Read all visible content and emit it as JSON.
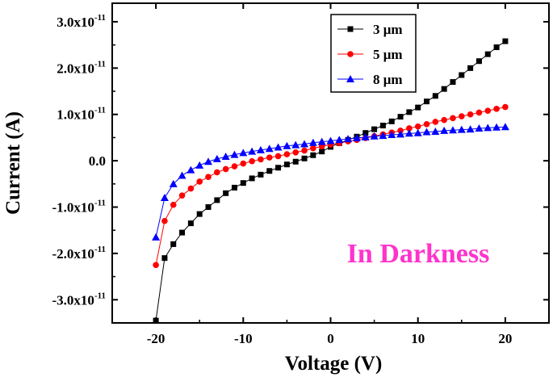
{
  "chart_data": {
    "type": "line",
    "xlabel": "Voltage (V)",
    "ylabel": "Current (A)",
    "xlim": [
      -25,
      25
    ],
    "ylim": [
      -3.5e-11,
      3.4e-11
    ],
    "x_ticks": [
      -20,
      -10,
      0,
      10,
      20
    ],
    "x_tick_labels": [
      "-20",
      "-10",
      "0",
      "10",
      "20"
    ],
    "y_ticks": [
      -3e-11,
      -2e-11,
      -1e-11,
      0,
      1e-11,
      2e-11,
      3e-11
    ],
    "y_tick_labels": [
      {
        "mantissa": "-3.0x10",
        "exp": "-11"
      },
      {
        "mantissa": "-2.0x10",
        "exp": "-11"
      },
      {
        "mantissa": "-1.0x10",
        "exp": "-11"
      },
      {
        "mantissa": "0.0",
        "exp": ""
      },
      {
        "mantissa": "1.0x10",
        "exp": "-11"
      },
      {
        "mantissa": "2.0x10",
        "exp": "-11"
      },
      {
        "mantissa": "3.0x10",
        "exp": "-11"
      }
    ],
    "annotation": "In Darkness",
    "annotation_color": "#ff33cc",
    "legend_position": "top-right",
    "series": [
      {
        "name": "3 μm",
        "marker": "square",
        "color": "#000000",
        "x": [
          -20,
          -19,
          -18,
          -17,
          -16,
          -15,
          -14,
          -13,
          -12,
          -11,
          -10,
          -9,
          -8,
          -7,
          -6,
          -5,
          -4,
          -3,
          -2,
          -1,
          0,
          1,
          2,
          3,
          4,
          5,
          6,
          7,
          8,
          9,
          10,
          11,
          12,
          13,
          14,
          15,
          16,
          17,
          18,
          19,
          20
        ],
        "y": [
          -3.45e-11,
          -2.1e-11,
          -1.8e-11,
          -1.55e-11,
          -1.35e-11,
          -1.15e-11,
          -1e-11,
          -8.5e-12,
          -7e-12,
          -5.8e-12,
          -4.8e-12,
          -3.8e-12,
          -3e-12,
          -2.2e-12,
          -1.5e-12,
          -8e-13,
          -2e-13,
          5e-13,
          1.2e-12,
          2e-12,
          3e-12,
          3.8e-12,
          4.5e-12,
          5.2e-12,
          6e-12,
          6.8e-12,
          7.6e-12,
          8.5e-12,
          9.5e-12,
          1.05e-11,
          1.15e-11,
          1.28e-11,
          1.4e-11,
          1.55e-11,
          1.7e-11,
          1.85e-11,
          2e-11,
          2.15e-11,
          2.3e-11,
          2.45e-11,
          2.58e-11
        ]
      },
      {
        "name": "5 μm",
        "marker": "circle",
        "color": "#ff0000",
        "x": [
          -20,
          -19,
          -18,
          -17,
          -16,
          -15,
          -14,
          -13,
          -12,
          -11,
          -10,
          -9,
          -8,
          -7,
          -6,
          -5,
          -4,
          -3,
          -2,
          -1,
          0,
          1,
          2,
          3,
          4,
          5,
          6,
          7,
          8,
          9,
          10,
          11,
          12,
          13,
          14,
          15,
          16,
          17,
          18,
          19,
          20
        ],
        "y": [
          -2.25e-11,
          -1.3e-11,
          -9.5e-12,
          -7.5e-12,
          -6e-12,
          -4.5e-12,
          -3.5e-12,
          -2.5e-12,
          -1.8e-12,
          -1.2e-12,
          -6e-13,
          -1e-13,
          3e-13,
          7e-13,
          1e-12,
          1.4e-12,
          1.8e-12,
          2.2e-12,
          2.7e-12,
          3.1e-12,
          3.5e-12,
          3.8e-12,
          4.2e-12,
          4.5e-12,
          4.9e-12,
          5.3e-12,
          5.7e-12,
          6.1e-12,
          6.5e-12,
          7e-12,
          7.4e-12,
          7.9e-12,
          8.4e-12,
          8.8e-12,
          9.2e-12,
          9.6e-12,
          1e-11,
          1.04e-11,
          1.08e-11,
          1.12e-11,
          1.16e-11
        ]
      },
      {
        "name": "8 μm",
        "marker": "triangle",
        "color": "#0000ff",
        "x": [
          -20,
          -19,
          -18,
          -17,
          -16,
          -15,
          -14,
          -13,
          -12,
          -11,
          -10,
          -9,
          -8,
          -7,
          -6,
          -5,
          -4,
          -3,
          -2,
          -1,
          0,
          1,
          2,
          3,
          4,
          5,
          6,
          7,
          8,
          9,
          10,
          11,
          12,
          13,
          14,
          15,
          16,
          17,
          18,
          19,
          20
        ],
        "y": [
          -1.65e-11,
          -8e-12,
          -5e-12,
          -3.2e-12,
          -2e-12,
          -1e-12,
          -2e-13,
          4e-13,
          9e-13,
          1.3e-12,
          1.7e-12,
          2e-12,
          2.3e-12,
          2.6e-12,
          2.9e-12,
          3.2e-12,
          3.4e-12,
          3.6e-12,
          3.9e-12,
          4.1e-12,
          4.3e-12,
          4.5e-12,
          4.7e-12,
          4.9e-12,
          5.1e-12,
          5.3e-12,
          5.4e-12,
          5.6e-12,
          5.7e-12,
          5.9e-12,
          6e-12,
          6.2e-12,
          6.3e-12,
          6.5e-12,
          6.6e-12,
          6.7e-12,
          6.8e-12,
          7e-12,
          7.1e-12,
          7.2e-12,
          7.3e-12
        ]
      }
    ]
  }
}
